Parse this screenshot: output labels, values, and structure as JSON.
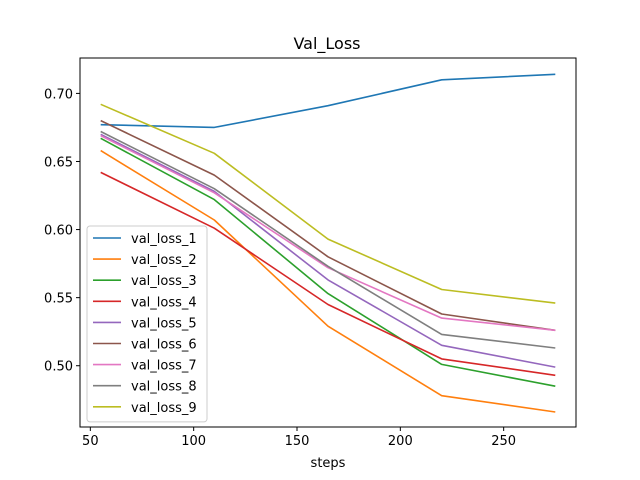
{
  "chart_data": {
    "type": "line",
    "title": "Val_Loss",
    "xlabel": "steps",
    "ylabel": "",
    "xlim": [
      45,
      285
    ],
    "ylim": [
      0.455,
      0.726
    ],
    "xticks": [
      50,
      100,
      150,
      200,
      250
    ],
    "yticks": [
      0.5,
      0.55,
      0.6,
      0.65,
      0.7
    ],
    "xtick_labels": [
      "50",
      "100",
      "150",
      "200",
      "250"
    ],
    "ytick_labels": [
      "0.50",
      "0.55",
      "0.60",
      "0.65",
      "0.70"
    ],
    "grid": false,
    "legend_position": "lower-left",
    "x": [
      55,
      110,
      165,
      220,
      275
    ],
    "series": [
      {
        "name": "val_loss_1",
        "color": "#1f77b4",
        "values": [
          0.677,
          0.675,
          0.691,
          0.71,
          0.714
        ]
      },
      {
        "name": "val_loss_2",
        "color": "#ff7f0e",
        "values": [
          0.658,
          0.607,
          0.529,
          0.478,
          0.466
        ]
      },
      {
        "name": "val_loss_3",
        "color": "#2ca02c",
        "values": [
          0.667,
          0.622,
          0.553,
          0.501,
          0.485
        ]
      },
      {
        "name": "val_loss_4",
        "color": "#d62728",
        "values": [
          0.642,
          0.601,
          0.545,
          0.505,
          0.493
        ]
      },
      {
        "name": "val_loss_5",
        "color": "#9467bd",
        "values": [
          0.67,
          0.628,
          0.563,
          0.515,
          0.499
        ]
      },
      {
        "name": "val_loss_6",
        "color": "#8c564b",
        "values": [
          0.68,
          0.64,
          0.58,
          0.538,
          0.526
        ]
      },
      {
        "name": "val_loss_7",
        "color": "#e377c2",
        "values": [
          0.669,
          0.627,
          0.572,
          0.535,
          0.526
        ]
      },
      {
        "name": "val_loss_8",
        "color": "#7f7f7f",
        "values": [
          0.672,
          0.63,
          0.573,
          0.523,
          0.513
        ]
      },
      {
        "name": "val_loss_9",
        "color": "#bcbd22",
        "values": [
          0.692,
          0.656,
          0.593,
          0.556,
          0.546
        ]
      }
    ]
  }
}
